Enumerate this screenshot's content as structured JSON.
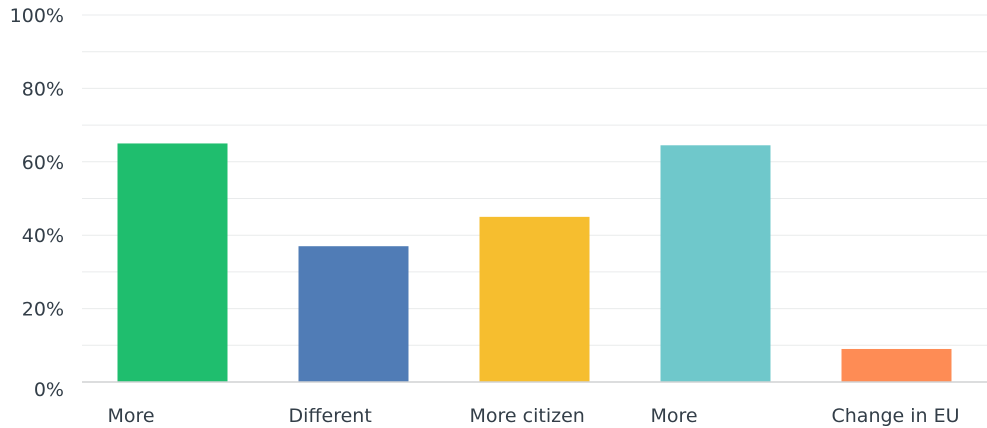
{
  "chart_data": {
    "type": "bar",
    "categories": [
      "More",
      "Different",
      "More citizen",
      "More",
      "Change in EU"
    ],
    "values": [
      65,
      37,
      45,
      64.5,
      9
    ],
    "colors": [
      "#1fbe6e",
      "#507cb6",
      "#f6be2f",
      "#6fc8cb",
      "#fe8c55"
    ],
    "yticks": [
      "0%",
      "20%",
      "40%",
      "60%",
      "80%",
      "100%"
    ],
    "ylim": [
      0,
      100
    ],
    "grid": true,
    "title": "",
    "xlabel": "",
    "ylabel": ""
  }
}
